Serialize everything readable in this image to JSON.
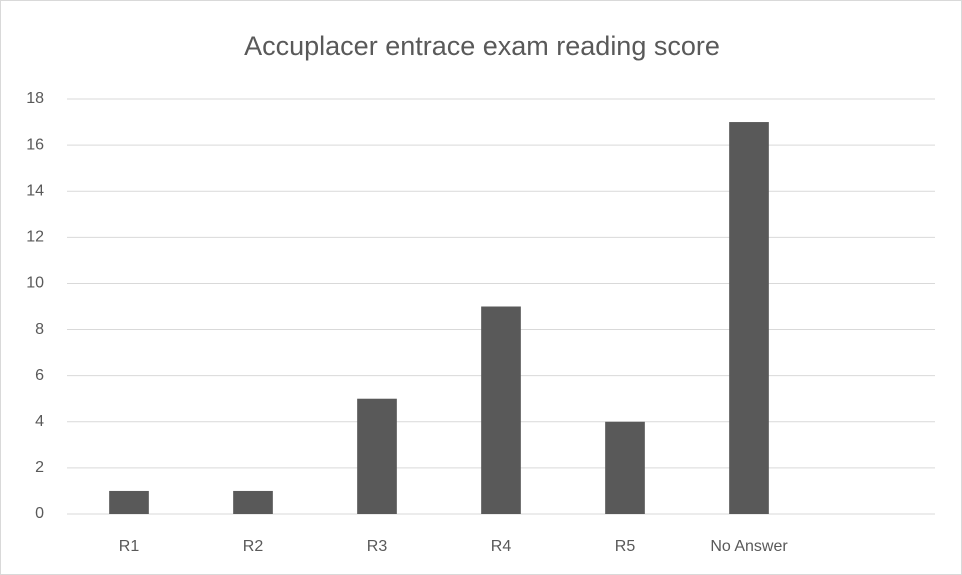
{
  "chart_data": {
    "type": "bar",
    "title": "Accuplacer entrace exam reading score",
    "categories": [
      "R1",
      "R2",
      "R3",
      "R4",
      "R5",
      "No Answer",
      null
    ],
    "values": [
      1,
      1,
      5,
      9,
      4,
      17,
      null
    ],
    "color": "#595959",
    "ylim": [
      0,
      18
    ],
    "yticks": [
      0,
      2,
      4,
      6,
      8,
      10,
      12,
      14,
      16,
      18
    ],
    "grid": true
  }
}
